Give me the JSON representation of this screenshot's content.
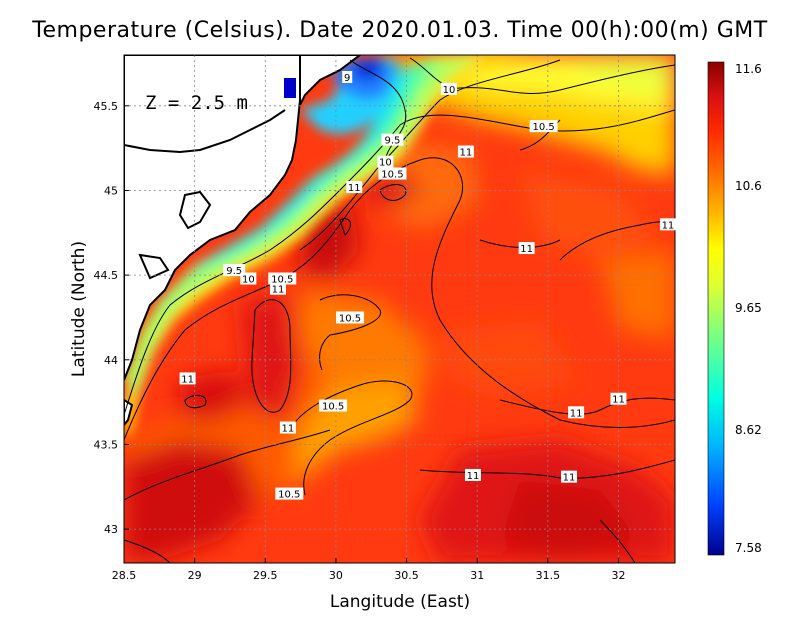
{
  "title": "Temperature (Celsius). Date 2020.01.03. Time 00(h):00(m) GMT",
  "depth_label": "Z = 2.5 m",
  "map": {
    "x_axis_label": "Langitude (East)",
    "y_axis_label": "Latitude (North)",
    "lon_range": [
      28.5,
      32.4
    ],
    "lat_range": [
      42.8,
      45.8
    ],
    "lon_ticks": [
      "28.5",
      "29",
      "29.5",
      "30",
      "30.5",
      "31",
      "31.5",
      "32"
    ],
    "lat_ticks": [
      "43",
      "43.5",
      "44",
      "44.5",
      "45",
      "45.5"
    ],
    "gridlines": true
  },
  "colorbar": {
    "max_label": "11.6",
    "mid_high_label": "10.6",
    "mid_label": "9.65",
    "mid_low_label": "8.62",
    "min_label": "7.58",
    "colors": [
      "#00008b",
      "#0040ff",
      "#00c8ff",
      "#00ffd0",
      "#7fff7f",
      "#d8ff3a",
      "#ffff00",
      "#ffc000",
      "#ff7a00",
      "#ff3a00",
      "#e01010",
      "#8b0000"
    ]
  },
  "contour_labels": [
    {
      "text": "9",
      "lon": 30.08,
      "lat": 45.67
    },
    {
      "text": "10",
      "lon": 30.8,
      "lat": 45.6
    },
    {
      "text": "10.5",
      "lon": 31.47,
      "lat": 45.38
    },
    {
      "text": "9.5",
      "lon": 30.4,
      "lat": 45.3
    },
    {
      "text": "11",
      "lon": 30.92,
      "lat": 45.23
    },
    {
      "text": "10",
      "lon": 30.35,
      "lat": 45.17
    },
    {
      "text": "10.5",
      "lon": 30.4,
      "lat": 45.1
    },
    {
      "text": "11",
      "lon": 30.13,
      "lat": 45.02
    },
    {
      "text": "11",
      "lon": 32.35,
      "lat": 44.8
    },
    {
      "text": "11",
      "lon": 31.35,
      "lat": 44.66
    },
    {
      "text": "9.5",
      "lon": 29.28,
      "lat": 44.53
    },
    {
      "text": "10",
      "lon": 29.38,
      "lat": 44.48
    },
    {
      "text": "10.5",
      "lon": 29.62,
      "lat": 44.48
    },
    {
      "text": "11",
      "lon": 29.59,
      "lat": 44.42
    },
    {
      "text": "10.5",
      "lon": 30.1,
      "lat": 44.25
    },
    {
      "text": "11",
      "lon": 28.95,
      "lat": 43.89
    },
    {
      "text": "11",
      "lon": 32,
      "lat": 43.77
    },
    {
      "text": "10.5",
      "lon": 29.98,
      "lat": 43.73
    },
    {
      "text": "11",
      "lon": 31.7,
      "lat": 43.69
    },
    {
      "text": "11",
      "lon": 29.66,
      "lat": 43.6
    },
    {
      "text": "11",
      "lon": 30.97,
      "lat": 43.32
    },
    {
      "text": "11",
      "lon": 31.65,
      "lat": 43.31
    },
    {
      "text": "10.5",
      "lon": 29.67,
      "lat": 43.21
    }
  ]
}
